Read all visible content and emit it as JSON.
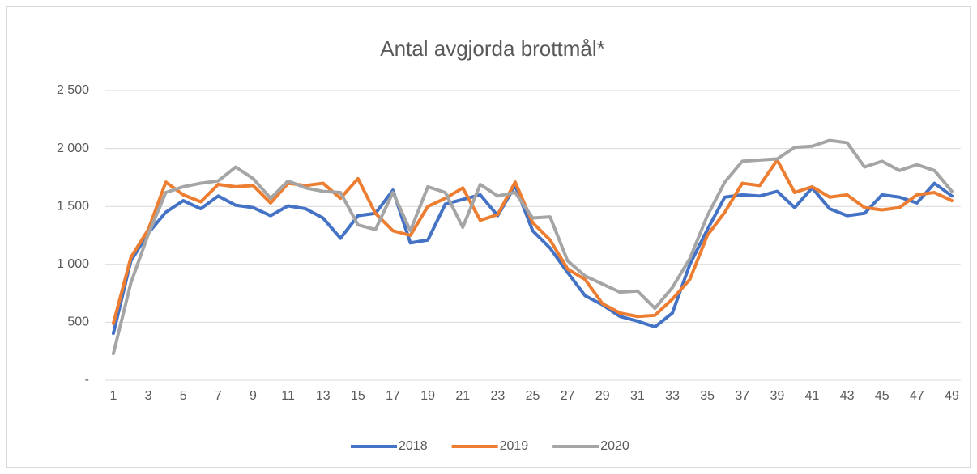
{
  "chart_data": {
    "type": "line",
    "title": "Antal avgjorda brottmål*",
    "categories": [
      "1",
      null,
      "3",
      null,
      "5",
      null,
      "7",
      null,
      "9",
      null,
      "11",
      null,
      "13",
      null,
      "15",
      null,
      "17",
      null,
      "19",
      null,
      "21",
      null,
      "23",
      null,
      "25",
      null,
      "27",
      null,
      "29",
      null,
      "31",
      null,
      "33",
      null,
      "35",
      null,
      "37",
      null,
      "39",
      null,
      "41",
      null,
      "43",
      null,
      "45",
      null,
      "47",
      null,
      "49"
    ],
    "series": [
      {
        "name": "2018",
        "color": "#4472c4",
        "values": [
          405,
          1030,
          1270,
          1450,
          1550,
          1480,
          1590,
          1510,
          1490,
          1420,
          1505,
          1480,
          1400,
          1225,
          1420,
          1440,
          1640,
          1185,
          1210,
          1520,
          1560,
          1600,
          1420,
          1680,
          1290,
          1140,
          930,
          730,
          650,
          550,
          510,
          460,
          580,
          1000,
          1300,
          1580,
          1600,
          1590,
          1630,
          1490,
          1660,
          1480,
          1420,
          1440,
          1600,
          1580,
          1530,
          1700,
          1590
        ]
      },
      {
        "name": "2019",
        "color": "#ed7d31",
        "values": [
          490,
          1060,
          1300,
          1710,
          1600,
          1540,
          1690,
          1670,
          1680,
          1530,
          1700,
          1680,
          1700,
          1570,
          1740,
          1440,
          1290,
          1250,
          1500,
          1570,
          1660,
          1380,
          1430,
          1710,
          1360,
          1210,
          960,
          870,
          660,
          580,
          550,
          560,
          700,
          870,
          1250,
          1450,
          1700,
          1680,
          1900,
          1620,
          1670,
          1580,
          1600,
          1490,
          1470,
          1490,
          1600,
          1620,
          1550
        ]
      },
      {
        "name": "2020",
        "color": "#a5a5a5",
        "values": [
          230,
          840,
          1260,
          1620,
          1670,
          1700,
          1720,
          1840,
          1740,
          1570,
          1720,
          1660,
          1630,
          1620,
          1340,
          1300,
          1620,
          1290,
          1670,
          1620,
          1320,
          1690,
          1590,
          1620,
          1400,
          1410,
          1030,
          900,
          830,
          760,
          770,
          620,
          800,
          1050,
          1420,
          1710,
          1890,
          1900,
          1910,
          2010,
          2020,
          2070,
          2050,
          1840,
          1890,
          1810,
          1860,
          1810,
          1630
        ]
      }
    ],
    "ylim": [
      0,
      2500
    ],
    "yticks": [
      {
        "value": 0,
        "label": "-"
      },
      500,
      {
        "value": 1000,
        "label": "1 000"
      },
      {
        "value": 1500,
        "label": "1 500"
      },
      {
        "value": 2000,
        "label": "2 000"
      },
      {
        "value": 2500,
        "label": "2 500"
      }
    ],
    "grid": true,
    "legend": "bottom"
  }
}
